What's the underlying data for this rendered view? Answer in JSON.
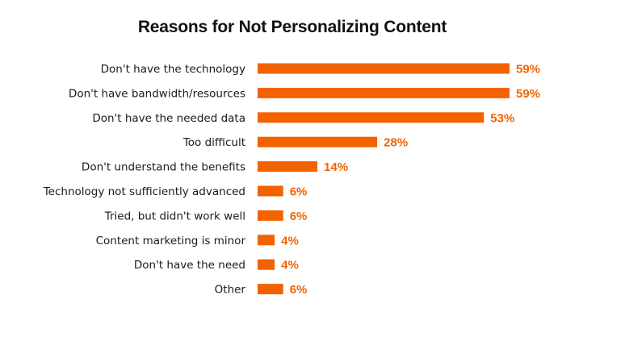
{
  "chart_data": {
    "type": "bar",
    "orientation": "horizontal",
    "title": "Reasons for Not Personalizing Content",
    "xlabel": "",
    "ylabel": "",
    "xlim": [
      0,
      59
    ],
    "grid": false,
    "legend": "none",
    "bar_color": "#F26300",
    "value_label_color": "#F26300",
    "value_suffix": "%",
    "categories": [
      "Don't have the technology",
      "Don't have bandwidth/resources",
      "Don't have the needed data",
      "Too difficult",
      "Don't understand the benefits",
      "Technology not sufficiently advanced",
      "Tried, but didn't work well",
      "Content marketing is minor",
      "Don't have the need",
      "Other"
    ],
    "values": [
      59,
      59,
      53,
      28,
      14,
      6,
      6,
      4,
      4,
      6
    ],
    "value_labels": [
      "59%",
      "59%",
      "53%",
      "28%",
      "14%",
      "6%",
      "6%",
      "4%",
      "4%",
      "6%"
    ]
  }
}
